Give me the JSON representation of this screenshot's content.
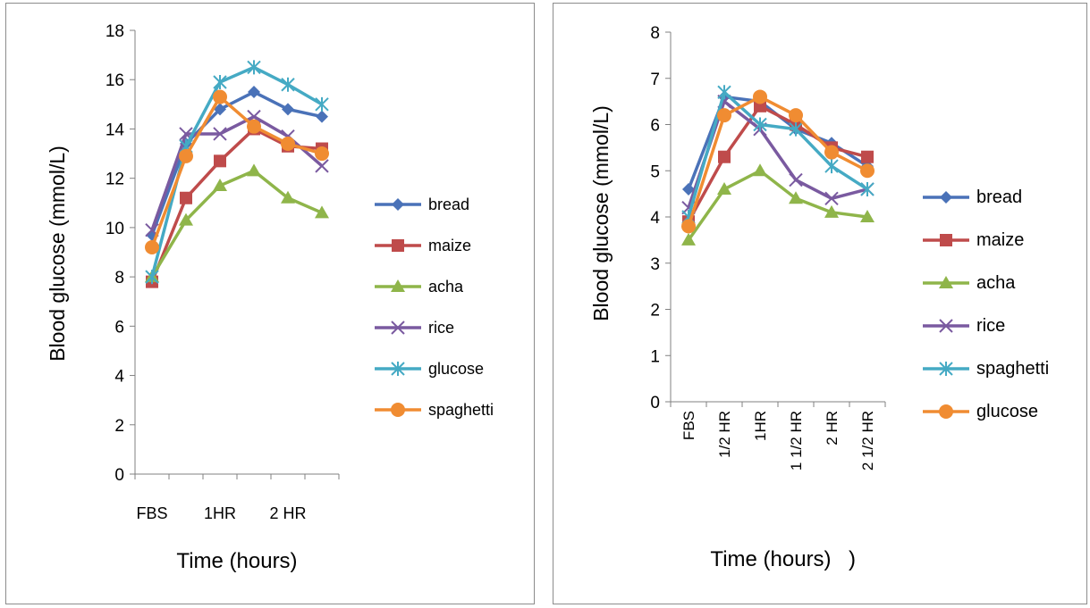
{
  "chart_data": [
    {
      "type": "line",
      "title": "",
      "xlabel": "Time (hours)",
      "ylabel": "Blood glucose (mmol/L)",
      "ylim": [
        0,
        18
      ],
      "yticks": [
        "0",
        "2",
        "4",
        "6",
        "8",
        "10",
        "12",
        "14",
        "16",
        "18"
      ],
      "categories": [
        "FBS",
        "",
        "1HR",
        "",
        "2 HR",
        ""
      ],
      "grid": false,
      "legend": "right",
      "series": [
        {
          "name": "bread",
          "color": "#4a72b8",
          "marker": "diamond",
          "values": [
            9.7,
            13.4,
            14.8,
            15.5,
            14.8,
            14.5
          ]
        },
        {
          "name": "maize",
          "color": "#bf4b4b",
          "marker": "square",
          "values": [
            7.8,
            11.2,
            12.7,
            14.0,
            13.3,
            13.2
          ]
        },
        {
          "name": "acha",
          "color": "#8fb54a",
          "marker": "triangle",
          "values": [
            8.0,
            10.3,
            11.7,
            12.3,
            11.2,
            10.6
          ]
        },
        {
          "name": "rice",
          "color": "#7a5aa0",
          "marker": "x",
          "values": [
            9.9,
            13.8,
            13.8,
            14.5,
            13.7,
            12.5
          ]
        },
        {
          "name": "glucose",
          "color": "#45aac4",
          "marker": "star",
          "values": [
            8.0,
            13.3,
            15.9,
            16.5,
            15.8,
            15.0
          ]
        },
        {
          "name": "spaghetti",
          "color": "#f08c32",
          "marker": "circle",
          "values": [
            9.2,
            12.9,
            15.3,
            14.1,
            13.4,
            13.0
          ]
        }
      ]
    },
    {
      "type": "line",
      "title": "",
      "xlabel": "Time (hours)",
      "ylabel": "Blood glucose (mmol/L)",
      "ylim": [
        0,
        8
      ],
      "yticks": [
        "0",
        "1",
        "2",
        "3",
        "4",
        "5",
        "6",
        "7",
        "8"
      ],
      "categories": [
        "FBS",
        "1/2 HR",
        "1HR",
        "1 1/2 HR",
        "2 HR",
        "2 1/2 HR"
      ],
      "grid": false,
      "legend": "right",
      "series": [
        {
          "name": "bread",
          "color": "#4a72b8",
          "marker": "diamond",
          "values": [
            4.6,
            6.6,
            6.5,
            5.9,
            5.6,
            5.1
          ]
        },
        {
          "name": "maize",
          "color": "#bf4b4b",
          "marker": "square",
          "values": [
            3.9,
            5.3,
            6.4,
            6.0,
            5.5,
            5.3
          ]
        },
        {
          "name": "acha",
          "color": "#8fb54a",
          "marker": "triangle",
          "values": [
            3.5,
            4.6,
            5.0,
            4.4,
            4.1,
            4.0
          ]
        },
        {
          "name": "rice",
          "color": "#7a5aa0",
          "marker": "x",
          "values": [
            4.2,
            6.5,
            5.9,
            4.8,
            4.4,
            4.6
          ]
        },
        {
          "name": "spaghetti",
          "color": "#45aac4",
          "marker": "star",
          "values": [
            4.0,
            6.7,
            6.0,
            5.9,
            5.1,
            4.6
          ]
        },
        {
          "name": "glucose",
          "color": "#f08c32",
          "marker": "circle",
          "values": [
            3.8,
            6.2,
            6.6,
            6.2,
            5.4,
            5.0
          ]
        }
      ]
    }
  ],
  "annotations": {
    "right_paren": ")"
  }
}
